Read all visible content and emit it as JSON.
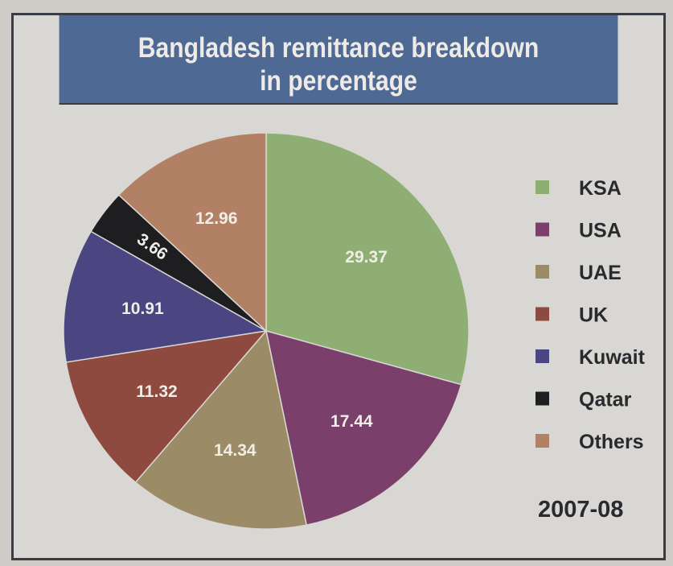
{
  "chart_data": {
    "type": "pie",
    "title": "Bangladesh remittance breakdown in percentage",
    "title_lines": [
      "Bangladesh remittance breakdown",
      "in percentage"
    ],
    "period": "2007-08",
    "legend_position": "right",
    "slices": [
      {
        "label": "KSA",
        "value": 29.37,
        "value_label": "29.37",
        "color": "#8fae74"
      },
      {
        "label": "USA",
        "value": 17.44,
        "value_label": "17.44",
        "color": "#7a3f6a"
      },
      {
        "label": "UAE",
        "value": 14.34,
        "value_label": "14.34",
        "color": "#9b8b66"
      },
      {
        "label": "UK",
        "value": 11.32,
        "value_label": "11.32",
        "color": "#8e4a3e"
      },
      {
        "label": "Kuwait",
        "value": 10.91,
        "value_label": "10.91",
        "color": "#4b4582"
      },
      {
        "label": "Qatar",
        "value": 3.66,
        "value_label": "3.66",
        "color": "#1e1e20"
      },
      {
        "label": "Others",
        "value": 12.96,
        "value_label": "12.96",
        "color": "#b28064"
      }
    ]
  }
}
